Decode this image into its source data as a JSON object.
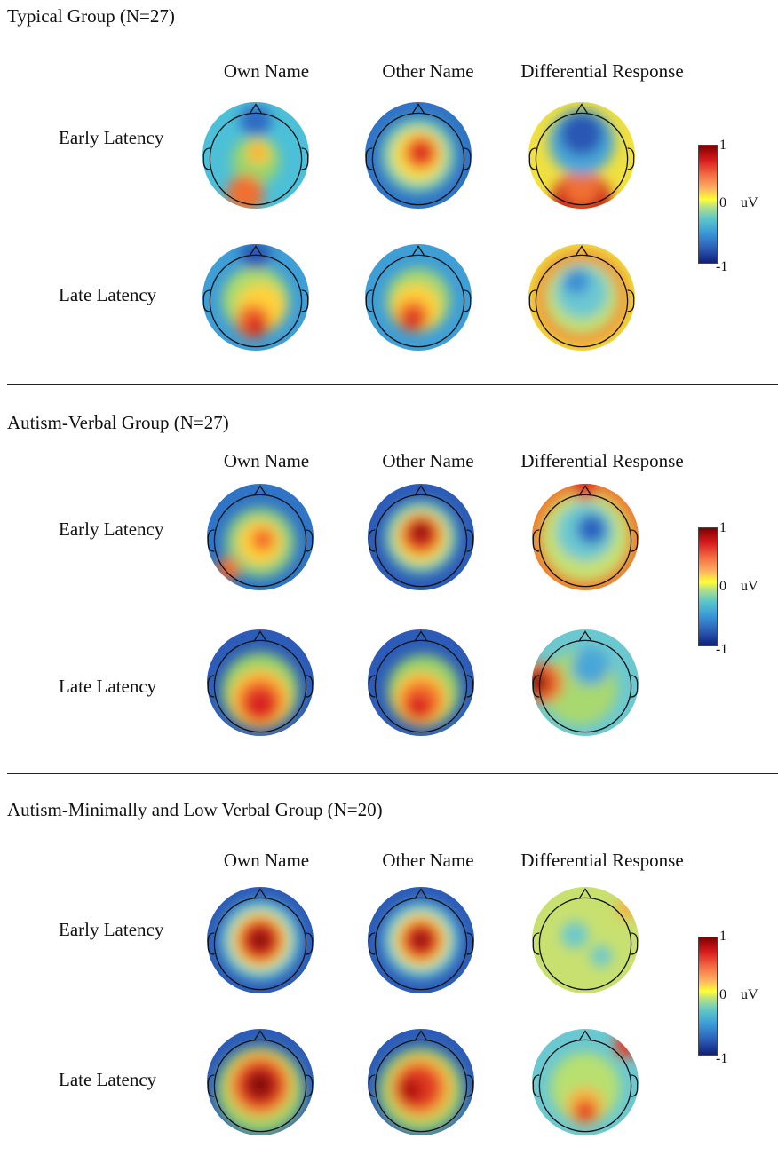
{
  "columns": [
    "Own Name",
    "Other Name",
    "Differential Response"
  ],
  "rows": [
    "Early Latency",
    "Late Latency"
  ],
  "colorbar": {
    "max": "1",
    "zero": "0",
    "min": "-1",
    "unit": "uV",
    "colors": [
      "#7f0000",
      "#d7191c",
      "#f46d43",
      "#fdae61",
      "#ffff33",
      "#b8e186",
      "#5ec8c8",
      "#3a9bd8",
      "#2c5fb8",
      "#10207a"
    ]
  },
  "groups": [
    {
      "title": "Typical Group (N=27)",
      "maps": [
        {
          "row": "Early Latency",
          "column": "Own Name",
          "bg": "#4cc0d8",
          "blobs": [
            {
              "rx": 0.0,
              "ry": 0.1,
              "r": 0.45,
              "color": "#9ad46a"
            },
            {
              "rx": 0.05,
              "ry": -0.05,
              "r": 0.22,
              "color": "#ffd23a"
            },
            {
              "rx": 0.03,
              "ry": -0.05,
              "r": 0.1,
              "color": "#f57a2a"
            },
            {
              "rx": -0.2,
              "ry": 0.72,
              "r": 0.35,
              "color": "#f07030"
            },
            {
              "rx": 0.0,
              "ry": -0.65,
              "r": 0.3,
              "color": "#2e6cc4"
            }
          ]
        },
        {
          "row": "Early Latency",
          "column": "Other Name",
          "bg": "#2f74c6",
          "blobs": [
            {
              "rx": 0.0,
              "ry": 0.0,
              "r": 0.7,
              "color": "#7fd0b0"
            },
            {
              "rx": 0.0,
              "ry": 0.0,
              "r": 0.5,
              "color": "#f6e04a"
            },
            {
              "rx": 0.05,
              "ry": -0.05,
              "r": 0.32,
              "color": "#f26a2c"
            },
            {
              "rx": 0.05,
              "ry": -0.05,
              "r": 0.18,
              "color": "#d8201e"
            }
          ]
        },
        {
          "row": "Early Latency",
          "column": "Differential Response",
          "bg": "#f0e040",
          "blobs": [
            {
              "rx": 0.0,
              "ry": 0.85,
              "r": 0.55,
              "color": "#c81818"
            },
            {
              "rx": 0.0,
              "ry": 0.6,
              "r": 0.35,
              "color": "#f07030"
            },
            {
              "rx": 0.0,
              "ry": -0.25,
              "r": 0.62,
              "color": "#4aa6d8"
            },
            {
              "rx": 0.0,
              "ry": -0.4,
              "r": 0.4,
              "color": "#2a56b4"
            }
          ]
        },
        {
          "row": "Late Latency",
          "column": "Own Name",
          "bg": "#3e9ed6",
          "blobs": [
            {
              "rx": 0.0,
              "ry": 0.05,
              "r": 0.62,
              "color": "#aedc6a"
            },
            {
              "rx": 0.1,
              "ry": 0.2,
              "r": 0.45,
              "color": "#ffd13a"
            },
            {
              "rx": -0.05,
              "ry": 0.45,
              "r": 0.32,
              "color": "#f26a2c"
            },
            {
              "rx": 0.0,
              "ry": 0.55,
              "r": 0.18,
              "color": "#d02020"
            },
            {
              "rx": 0.0,
              "ry": -0.8,
              "r": 0.28,
              "color": "#2a56b4"
            }
          ]
        },
        {
          "row": "Late Latency",
          "column": "Other Name",
          "bg": "#3e9ed6",
          "blobs": [
            {
              "rx": 0.0,
              "ry": 0.05,
              "r": 0.6,
              "color": "#a8d870"
            },
            {
              "rx": -0.05,
              "ry": 0.2,
              "r": 0.45,
              "color": "#ffd13a"
            },
            {
              "rx": -0.1,
              "ry": 0.35,
              "r": 0.3,
              "color": "#f26a2c"
            },
            {
              "rx": -0.1,
              "ry": 0.42,
              "r": 0.16,
              "color": "#d02020"
            }
          ]
        },
        {
          "row": "Late Latency",
          "column": "Differential Response",
          "bg": "#f0e040",
          "blobs": [
            {
              "rx": 0.0,
              "ry": 0.0,
              "r": 0.88,
              "color": "#f07a2c"
            },
            {
              "rx": 0.0,
              "ry": 0.0,
              "r": 0.7,
              "color": "#c2e070"
            },
            {
              "rx": 0.0,
              "ry": -0.1,
              "r": 0.5,
              "color": "#6cc8d0"
            },
            {
              "rx": -0.1,
              "ry": -0.3,
              "r": 0.25,
              "color": "#3a8ed4"
            }
          ]
        }
      ]
    },
    {
      "title": "Autism-Verbal Group (N=27)",
      "maps": [
        {
          "row": "Early Latency",
          "column": "Own Name",
          "bg": "#2f74c6",
          "blobs": [
            {
              "rx": 0.0,
              "ry": 0.1,
              "r": 0.66,
              "color": "#8fd080"
            },
            {
              "rx": 0.0,
              "ry": 0.1,
              "r": 0.42,
              "color": "#ffd23a"
            },
            {
              "rx": 0.05,
              "ry": 0.05,
              "r": 0.22,
              "color": "#f26a2c"
            },
            {
              "rx": -0.6,
              "ry": 0.6,
              "r": 0.22,
              "color": "#f06a2a"
            }
          ]
        },
        {
          "row": "Early Latency",
          "column": "Other Name",
          "bg": "#2c5cb8",
          "blobs": [
            {
              "rx": 0.0,
              "ry": 0.0,
              "r": 0.68,
              "color": "#7fd0b0"
            },
            {
              "rx": 0.0,
              "ry": 0.0,
              "r": 0.5,
              "color": "#f6d640"
            },
            {
              "rx": 0.0,
              "ry": -0.05,
              "r": 0.36,
              "color": "#e23a22"
            },
            {
              "rx": 0.0,
              "ry": -0.1,
              "r": 0.18,
              "color": "#8a0a0a"
            }
          ]
        },
        {
          "row": "Early Latency",
          "column": "Differential Response",
          "bg": "#f07a2c",
          "blobs": [
            {
              "rx": 0.0,
              "ry": 0.0,
              "r": 0.85,
              "color": "#c8e070"
            },
            {
              "rx": 0.0,
              "ry": -0.1,
              "r": 0.55,
              "color": "#6cc8d0"
            },
            {
              "rx": 0.12,
              "ry": -0.15,
              "r": 0.28,
              "color": "#2a62c0"
            },
            {
              "rx": 0.0,
              "ry": -0.95,
              "r": 0.25,
              "color": "#e03020"
            }
          ]
        },
        {
          "row": "Late Latency",
          "column": "Own Name",
          "bg": "#2c5cb8",
          "blobs": [
            {
              "rx": 0.0,
              "ry": 0.15,
              "r": 0.72,
              "color": "#9ad46a"
            },
            {
              "rx": 0.0,
              "ry": 0.3,
              "r": 0.55,
              "color": "#ffc23a"
            },
            {
              "rx": 0.0,
              "ry": 0.35,
              "r": 0.42,
              "color": "#f26a2c"
            },
            {
              "rx": 0.0,
              "ry": 0.4,
              "r": 0.28,
              "color": "#d82020"
            }
          ]
        },
        {
          "row": "Late Latency",
          "column": "Other Name",
          "bg": "#2c5cb8",
          "blobs": [
            {
              "rx": 0.05,
              "ry": 0.15,
              "r": 0.68,
              "color": "#9ad46a"
            },
            {
              "rx": 0.0,
              "ry": 0.3,
              "r": 0.5,
              "color": "#ffc23a"
            },
            {
              "rx": 0.0,
              "ry": 0.35,
              "r": 0.38,
              "color": "#f26a2c"
            },
            {
              "rx": -0.05,
              "ry": 0.45,
              "r": 0.22,
              "color": "#d82020"
            }
          ]
        },
        {
          "row": "Late Latency",
          "column": "Differential Response",
          "bg": "#6cc8d0",
          "blobs": [
            {
              "rx": -0.1,
              "ry": 0.1,
              "r": 0.7,
              "color": "#a8d870"
            },
            {
              "rx": 0.1,
              "ry": -0.3,
              "r": 0.35,
              "color": "#4aa6d8"
            },
            {
              "rx": -0.8,
              "ry": 0.0,
              "r": 0.38,
              "color": "#f26a2c"
            },
            {
              "rx": -0.9,
              "ry": 0.0,
              "r": 0.22,
              "color": "#8a0a0a"
            }
          ]
        }
      ]
    },
    {
      "title": "Autism-Minimally and Low Verbal Group (N=20)",
      "maps": [
        {
          "row": "Early Latency",
          "column": "Own Name",
          "bg": "#2c5cb8",
          "blobs": [
            {
              "rx": 0.0,
              "ry": 0.0,
              "r": 0.75,
              "color": "#6cc8d0"
            },
            {
              "rx": 0.0,
              "ry": 0.0,
              "r": 0.55,
              "color": "#f6e04a"
            },
            {
              "rx": 0.0,
              "ry": 0.0,
              "r": 0.42,
              "color": "#e23a22"
            },
            {
              "rx": 0.0,
              "ry": 0.0,
              "r": 0.22,
              "color": "#8a0a0a"
            }
          ]
        },
        {
          "row": "Early Latency",
          "column": "Other Name",
          "bg": "#2c5cb8",
          "blobs": [
            {
              "rx": 0.0,
              "ry": 0.0,
              "r": 0.72,
              "color": "#6cc8d0"
            },
            {
              "rx": 0.0,
              "ry": 0.0,
              "r": 0.52,
              "color": "#f6e04a"
            },
            {
              "rx": 0.0,
              "ry": 0.0,
              "r": 0.38,
              "color": "#e23a22"
            },
            {
              "rx": 0.0,
              "ry": 0.0,
              "r": 0.18,
              "color": "#8a0a0a"
            }
          ]
        },
        {
          "row": "Early Latency",
          "column": "Differential Response",
          "bg": "#c8e070",
          "blobs": [
            {
              "rx": -0.2,
              "ry": -0.1,
              "r": 0.25,
              "color": "#6cc8d0"
            },
            {
              "rx": 0.3,
              "ry": 0.3,
              "r": 0.2,
              "color": "#6cc8d0"
            },
            {
              "rx": 0.8,
              "ry": -0.6,
              "r": 0.2,
              "color": "#f6b040"
            }
          ]
        },
        {
          "row": "Late Latency",
          "column": "Own Name",
          "bg": "#2c5cb8",
          "blobs": [
            {
              "rx": 0.0,
              "ry": 0.15,
              "r": 0.82,
              "color": "#9ad46a"
            },
            {
              "rx": 0.0,
              "ry": 0.05,
              "r": 0.62,
              "color": "#f6b040"
            },
            {
              "rx": 0.0,
              "ry": 0.05,
              "r": 0.48,
              "color": "#e23a22"
            },
            {
              "rx": 0.0,
              "ry": 0.05,
              "r": 0.28,
              "color": "#8a0a0a"
            }
          ]
        },
        {
          "row": "Late Latency",
          "column": "Other Name",
          "bg": "#2c5cb8",
          "blobs": [
            {
              "rx": 0.0,
              "ry": 0.15,
              "r": 0.8,
              "color": "#9ad46a"
            },
            {
              "rx": 0.0,
              "ry": 0.1,
              "r": 0.6,
              "color": "#f6b040"
            },
            {
              "rx": -0.05,
              "ry": 0.1,
              "r": 0.44,
              "color": "#e23a22"
            },
            {
              "rx": -0.2,
              "ry": 0.15,
              "r": 0.22,
              "color": "#b01010"
            }
          ]
        },
        {
          "row": "Late Latency",
          "column": "Differential Response",
          "bg": "#6cc8d0",
          "blobs": [
            {
              "rx": 0.0,
              "ry": 0.1,
              "r": 0.65,
              "color": "#b8e070"
            },
            {
              "rx": 0.0,
              "ry": 0.45,
              "r": 0.35,
              "color": "#f6b040"
            },
            {
              "rx": 0.0,
              "ry": 0.55,
              "r": 0.2,
              "color": "#e23a22"
            },
            {
              "rx": 0.8,
              "ry": -0.7,
              "r": 0.25,
              "color": "#e23a22"
            }
          ]
        }
      ]
    }
  ]
}
